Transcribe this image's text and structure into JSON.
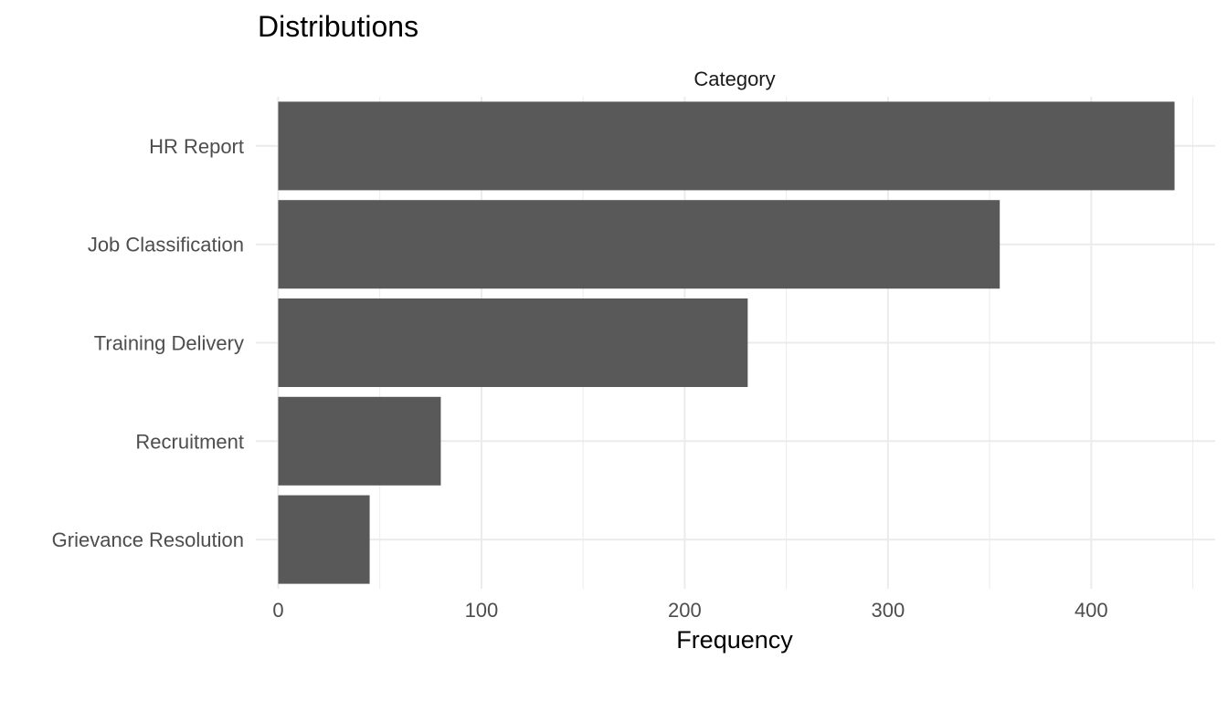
{
  "chart_data": {
    "type": "bar",
    "orientation": "horizontal",
    "title": "Distributions",
    "facet_label": "Category",
    "xlabel": "Frequency",
    "ylabel": "",
    "categories": [
      "HR Report",
      "Job Classification",
      "Training Delivery",
      "Recruitment",
      "Grievance Resolution"
    ],
    "values": [
      441,
      355,
      231,
      80,
      45
    ],
    "x_ticks": [
      0,
      100,
      200,
      300,
      400
    ],
    "xlim": [
      -11,
      461
    ],
    "grid": true,
    "bar_color": "#595959",
    "grid_color": "#ebebeb"
  }
}
